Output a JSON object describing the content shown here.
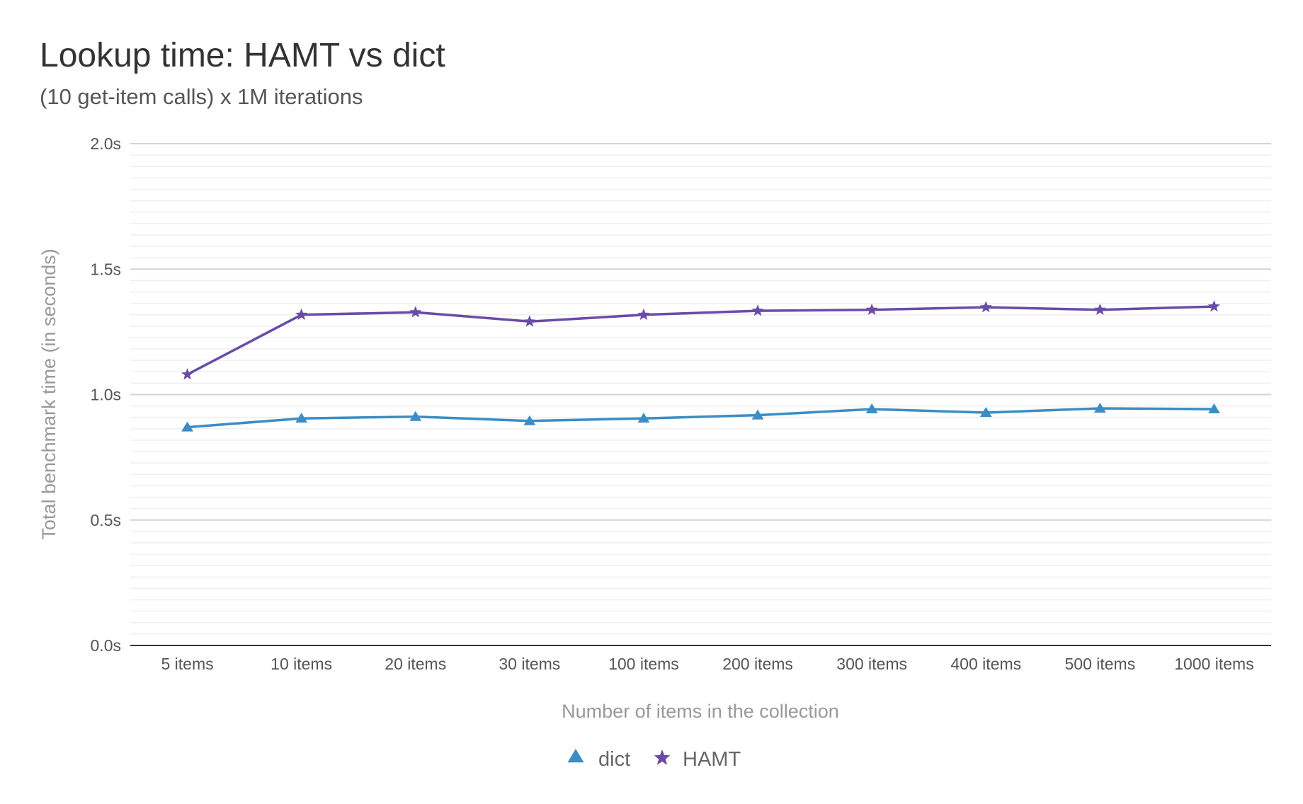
{
  "chart_data": {
    "type": "line",
    "title": "Lookup time: HAMT vs dict",
    "subtitle": "(10 get-item calls) x 1M iterations",
    "xlabel": "Number of items in the collection",
    "ylabel": "Total benchmark time (in seconds)",
    "categories": [
      "5 items",
      "10 items",
      "20 items",
      "30 items",
      "100 items",
      "200 items",
      "300 items",
      "400 items",
      "500 items",
      "1000 items"
    ],
    "ylim": [
      0,
      2.0
    ],
    "yticks": [
      {
        "value": 0.0,
        "label": "0.0s"
      },
      {
        "value": 0.5,
        "label": "0.5s"
      },
      {
        "value": 1.0,
        "label": "1.0s"
      },
      {
        "value": 1.5,
        "label": "1.5s"
      },
      {
        "value": 2.0,
        "label": "2.0s"
      }
    ],
    "grid": true,
    "legend_position": "bottom",
    "series": [
      {
        "name": "dict",
        "color": "#3c8dc5",
        "marker": "triangle",
        "values": [
          0.87,
          0.905,
          0.912,
          0.895,
          0.905,
          0.918,
          0.942,
          0.928,
          0.945,
          0.942
        ]
      },
      {
        "name": "HAMT",
        "color": "#6a4ba8",
        "marker": "star",
        "values": [
          1.08,
          1.318,
          1.328,
          1.291,
          1.318,
          1.334,
          1.338,
          1.348,
          1.338,
          1.351
        ]
      }
    ]
  }
}
